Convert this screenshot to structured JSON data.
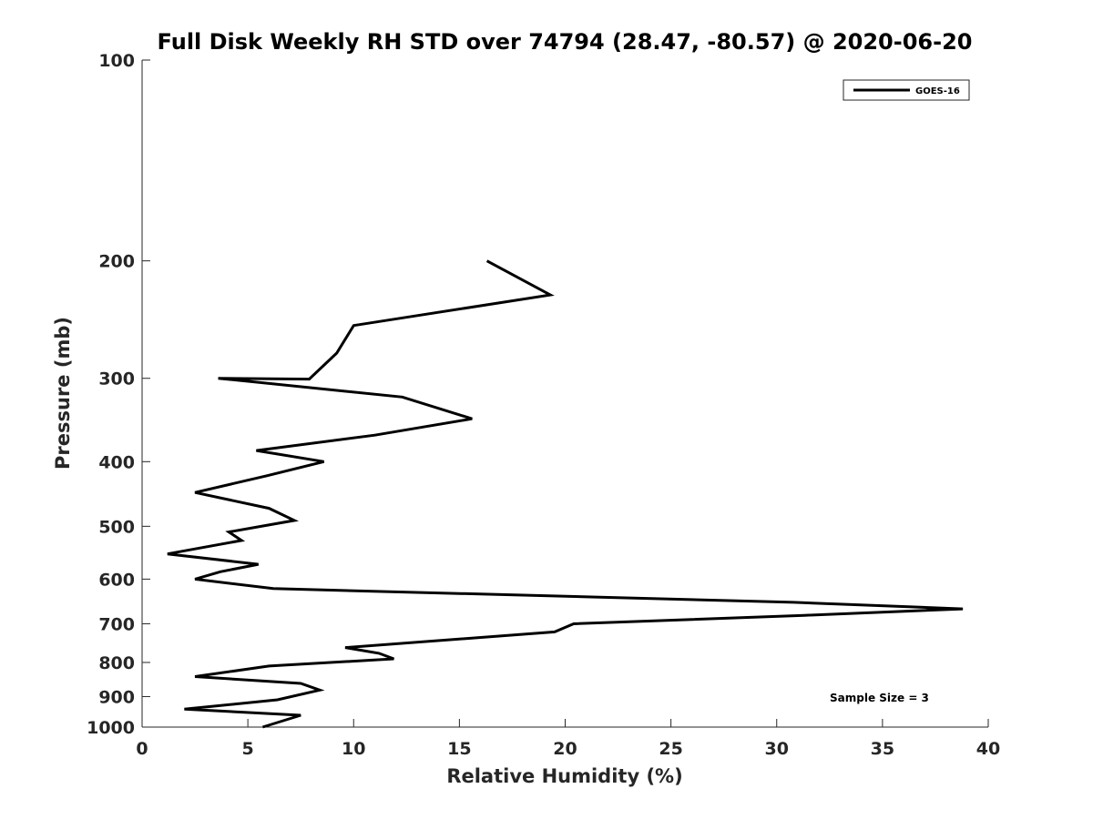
{
  "chart_data": {
    "type": "line",
    "title": "Full Disk Weekly RH STD over 74794 (28.47, -80.57) @ 2020-06-20",
    "xlabel": "Relative Humidity (%)",
    "ylabel": "Pressure (mb)",
    "xlim": [
      0,
      40
    ],
    "ylim": [
      100,
      1000
    ],
    "y_scale": "log",
    "y_reversed": true,
    "x_ticks": [
      0,
      5,
      10,
      15,
      20,
      25,
      30,
      35,
      40
    ],
    "y_ticks": [
      100,
      200,
      300,
      400,
      500,
      600,
      700,
      800,
      900,
      1000
    ],
    "grid": false,
    "legend_position": "top-right",
    "series": [
      {
        "name": "GOES-16",
        "color": "#000000",
        "points": [
          [
            16.3,
            200
          ],
          [
            19.3,
            225
          ],
          [
            10.0,
            250
          ],
          [
            9.2,
            275
          ],
          [
            7.9,
            300.8
          ],
          [
            3.6,
            300
          ],
          [
            12.3,
            320
          ],
          [
            15.6,
            345
          ],
          [
            11.0,
            365
          ],
          [
            5.4,
            385
          ],
          [
            8.6,
            400
          ],
          [
            5.9,
            420
          ],
          [
            2.5,
            445
          ],
          [
            6.0,
            470
          ],
          [
            7.2,
            490
          ],
          [
            4.1,
            510
          ],
          [
            4.7,
            525
          ],
          [
            1.2,
            550
          ],
          [
            5.5,
            570
          ],
          [
            3.7,
            585
          ],
          [
            2.5,
            600
          ],
          [
            6.2,
            620
          ],
          [
            30.8,
            650
          ],
          [
            38.8,
            665
          ],
          [
            31.3,
            680
          ],
          [
            20.4,
            700
          ],
          [
            19.5,
            720
          ],
          [
            9.6,
            760
          ],
          [
            11.2,
            775
          ],
          [
            11.9,
            790
          ],
          [
            6.0,
            810
          ],
          [
            2.5,
            840
          ],
          [
            7.5,
            860
          ],
          [
            8.4,
            880
          ],
          [
            6.4,
            910
          ],
          [
            2.0,
            940
          ],
          [
            7.5,
            960
          ],
          [
            5.7,
            1000
          ]
        ]
      }
    ],
    "annotation": "Sample Size = 3"
  }
}
